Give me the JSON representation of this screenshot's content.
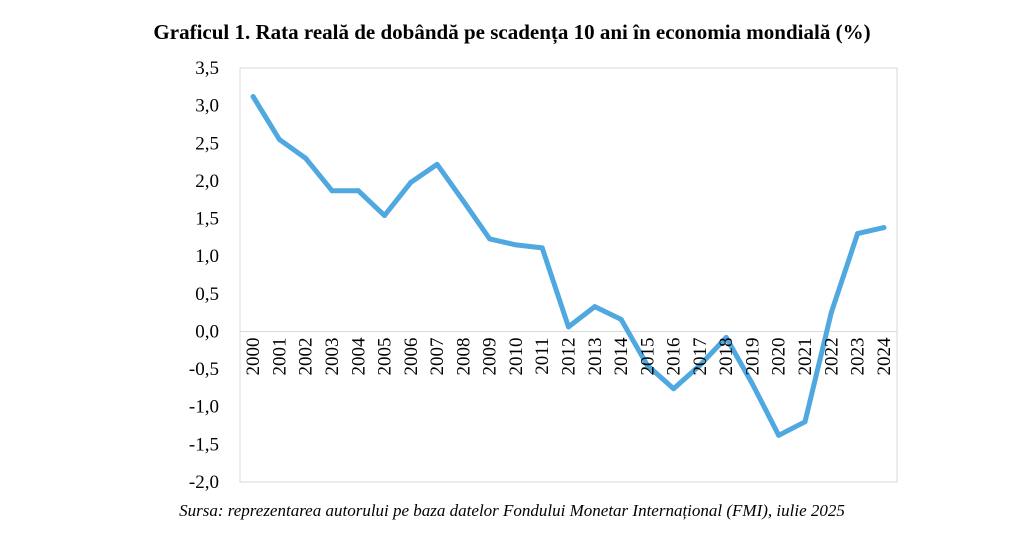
{
  "title": "Graficul 1. Rata reală de dobândă pe scadența 10 ani în economia mondială (%)",
  "source": "Sursa: reprezentarea autorului pe baza datelor Fondului Monetar Internațional (FMI), iulie 2025",
  "colors": {
    "line": "#4fa8e0",
    "axis": "#d9d9d9",
    "frame": "#d9d9d9"
  },
  "chart_data": {
    "type": "line",
    "title": "Graficul 1. Rata reală de dobândă pe scadența 10 ani în economia mondială (%)",
    "xlabel": "",
    "ylabel": "",
    "ylim": [
      -2.0,
      3.5
    ],
    "y_ticks": [
      "3,5",
      "3,0",
      "2,5",
      "2,0",
      "1,5",
      "1,0",
      "0,5",
      "0,0",
      "-0,5",
      "-1,0",
      "-1,5",
      "-2,0"
    ],
    "y_tick_values": [
      3.5,
      3.0,
      2.5,
      2.0,
      1.5,
      1.0,
      0.5,
      0.0,
      -0.5,
      -1.0,
      -1.5,
      -2.0
    ],
    "grid": false,
    "legend": "none",
    "categories": [
      "2000",
      "2001",
      "2002",
      "2003",
      "2004",
      "2005",
      "2006",
      "2007",
      "2008",
      "2009",
      "2010",
      "2011",
      "2012",
      "2013",
      "2014",
      "2015",
      "2016",
      "2017",
      "2018",
      "2019",
      "2020",
      "2021",
      "2022",
      "2023",
      "2024"
    ],
    "series": [
      {
        "values": [
          3.12,
          2.55,
          2.3,
          1.87,
          1.87,
          1.54,
          1.98,
          2.22,
          1.73,
          1.23,
          1.15,
          1.11,
          0.06,
          0.33,
          0.16,
          -0.45,
          -0.76,
          -0.45,
          -0.08,
          -0.7,
          -1.38,
          -1.2,
          0.25,
          1.3,
          1.38
        ]
      }
    ]
  }
}
